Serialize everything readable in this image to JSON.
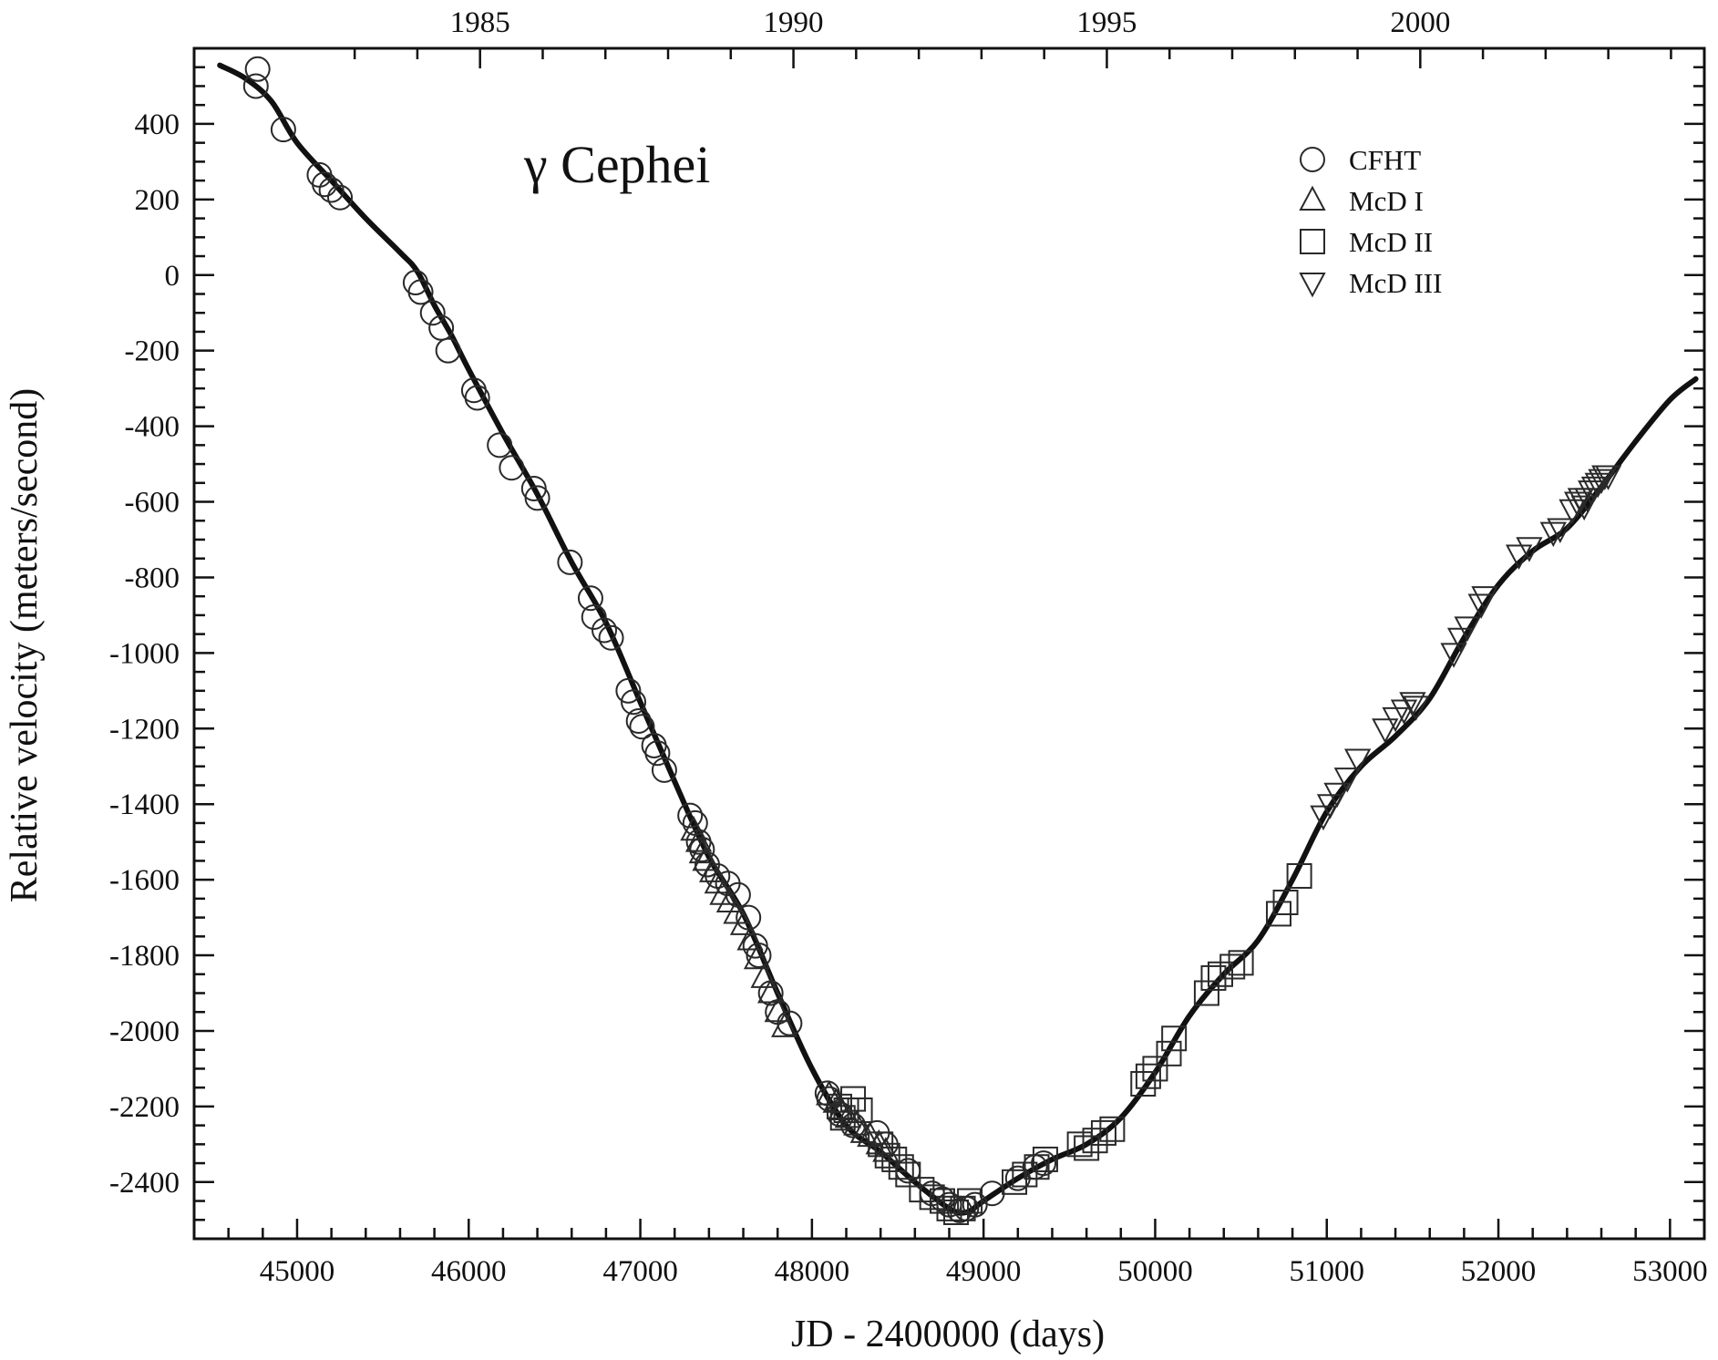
{
  "chart_data": {
    "type": "scatter",
    "title": "γ Cephei",
    "xlabel": "JD - 2400000 (days)",
    "ylabel": "Relative velocity (meters/second)",
    "xlim": [
      44400,
      53200
    ],
    "ylim": [
      -2550,
      600
    ],
    "xticks": [
      45000,
      46000,
      47000,
      48000,
      49000,
      50000,
      51000,
      52000,
      53000
    ],
    "yticks": [
      400,
      200,
      0,
      -200,
      -400,
      -600,
      -800,
      -1000,
      -1200,
      -1400,
      -1600,
      -1800,
      -2000,
      -2200,
      -2400
    ],
    "top_axis_ticks": [
      {
        "label": "1985",
        "jd": 46066
      },
      {
        "label": "1990",
        "jd": 47892
      },
      {
        "label": "1995",
        "jd": 49718
      },
      {
        "label": "2000",
        "jd": 51545
      }
    ],
    "legend_position": "top-right",
    "grid": false,
    "legend": [
      {
        "label": "CFHT",
        "marker": "circle"
      },
      {
        "label": "McD I",
        "marker": "triangle-up"
      },
      {
        "label": "McD II",
        "marker": "square"
      },
      {
        "label": "McD III",
        "marker": "triangle-down"
      }
    ],
    "series": [
      {
        "name": "CFHT",
        "marker": "circle",
        "points": [
          [
            44770,
            545
          ],
          [
            44760,
            500
          ],
          [
            44920,
            385
          ],
          [
            45130,
            265
          ],
          [
            45160,
            240
          ],
          [
            45200,
            225
          ],
          [
            45250,
            205
          ],
          [
            45690,
            -20
          ],
          [
            45720,
            -45
          ],
          [
            45790,
            -100
          ],
          [
            45840,
            -140
          ],
          [
            45880,
            -200
          ],
          [
            46030,
            -305
          ],
          [
            46050,
            -325
          ],
          [
            46180,
            -450
          ],
          [
            46250,
            -510
          ],
          [
            46380,
            -565
          ],
          [
            46400,
            -590
          ],
          [
            46590,
            -760
          ],
          [
            46710,
            -855
          ],
          [
            46730,
            -905
          ],
          [
            46790,
            -940
          ],
          [
            46830,
            -960
          ],
          [
            46930,
            -1100
          ],
          [
            46960,
            -1130
          ],
          [
            46990,
            -1180
          ],
          [
            47010,
            -1195
          ],
          [
            47080,
            -1245
          ],
          [
            47100,
            -1265
          ],
          [
            47140,
            -1310
          ],
          [
            47290,
            -1430
          ],
          [
            47320,
            -1450
          ],
          [
            47340,
            -1500
          ],
          [
            47360,
            -1520
          ],
          [
            47390,
            -1560
          ],
          [
            47450,
            -1590
          ],
          [
            47510,
            -1610
          ],
          [
            47570,
            -1640
          ],
          [
            47630,
            -1700
          ],
          [
            47670,
            -1775
          ],
          [
            47690,
            -1800
          ],
          [
            47760,
            -1900
          ],
          [
            47800,
            -1950
          ],
          [
            47870,
            -1980
          ],
          [
            48090,
            -2165
          ],
          [
            48100,
            -2180
          ],
          [
            48160,
            -2220
          ],
          [
            48240,
            -2250
          ],
          [
            48380,
            -2270
          ],
          [
            48430,
            -2300
          ],
          [
            48560,
            -2370
          ],
          [
            48700,
            -2430
          ],
          [
            48760,
            -2445
          ],
          [
            48800,
            -2460
          ],
          [
            48860,
            -2475
          ],
          [
            48900,
            -2470
          ],
          [
            48950,
            -2460
          ],
          [
            49050,
            -2430
          ],
          [
            49200,
            -2390
          ],
          [
            49300,
            -2360
          ],
          [
            49350,
            -2350
          ]
        ]
      },
      {
        "name": "McD I",
        "marker": "triangle-up",
        "points": [
          [
            47310,
            -1470
          ],
          [
            47340,
            -1500
          ],
          [
            47360,
            -1530
          ],
          [
            47380,
            -1550
          ],
          [
            47420,
            -1580
          ],
          [
            47450,
            -1610
          ],
          [
            47480,
            -1640
          ],
          [
            47520,
            -1660
          ],
          [
            47560,
            -1690
          ],
          [
            47600,
            -1720
          ],
          [
            47640,
            -1760
          ],
          [
            47680,
            -1810
          ],
          [
            47720,
            -1860
          ],
          [
            47760,
            -1900
          ],
          [
            47800,
            -1950
          ],
          [
            47840,
            -1990
          ],
          [
            48100,
            -2170
          ],
          [
            48140,
            -2190
          ],
          [
            48170,
            -2210
          ],
          [
            48210,
            -2230
          ],
          [
            48260,
            -2250
          ],
          [
            48300,
            -2270
          ],
          [
            48340,
            -2280
          ],
          [
            48390,
            -2300
          ],
          [
            48430,
            -2320
          ]
        ]
      },
      {
        "name": "McD II",
        "marker": "square",
        "points": [
          [
            48160,
            -2200
          ],
          [
            48180,
            -2230
          ],
          [
            48200,
            -2210
          ],
          [
            48240,
            -2180
          ],
          [
            48280,
            -2210
          ],
          [
            48400,
            -2300
          ],
          [
            48440,
            -2330
          ],
          [
            48480,
            -2340
          ],
          [
            48520,
            -2360
          ],
          [
            48560,
            -2380
          ],
          [
            48640,
            -2420
          ],
          [
            48700,
            -2440
          ],
          [
            48760,
            -2450
          ],
          [
            48800,
            -2470
          ],
          [
            48840,
            -2480
          ],
          [
            48880,
            -2470
          ],
          [
            48920,
            -2450
          ],
          [
            49180,
            -2400
          ],
          [
            49240,
            -2380
          ],
          [
            49310,
            -2360
          ],
          [
            49360,
            -2340
          ],
          [
            49560,
            -2300
          ],
          [
            49600,
            -2310
          ],
          [
            49650,
            -2290
          ],
          [
            49700,
            -2270
          ],
          [
            49750,
            -2260
          ],
          [
            49930,
            -2140
          ],
          [
            49960,
            -2120
          ],
          [
            50000,
            -2100
          ],
          [
            50080,
            -2060
          ],
          [
            50110,
            -2020
          ],
          [
            50300,
            -1900
          ],
          [
            50340,
            -1860
          ],
          [
            50380,
            -1850
          ],
          [
            50450,
            -1830
          ],
          [
            50500,
            -1820
          ],
          [
            50720,
            -1690
          ],
          [
            50760,
            -1660
          ],
          [
            50840,
            -1590
          ]
        ]
      },
      {
        "name": "McD III",
        "marker": "triangle-down",
        "points": [
          [
            50980,
            -1430
          ],
          [
            51020,
            -1400
          ],
          [
            51060,
            -1370
          ],
          [
            51120,
            -1330
          ],
          [
            51180,
            -1280
          ],
          [
            51340,
            -1200
          ],
          [
            51400,
            -1170
          ],
          [
            51450,
            -1150
          ],
          [
            51500,
            -1130
          ],
          [
            51520,
            -1140
          ],
          [
            51740,
            -1000
          ],
          [
            51780,
            -960
          ],
          [
            51820,
            -930
          ],
          [
            51900,
            -870
          ],
          [
            51920,
            -850
          ],
          [
            52120,
            -740
          ],
          [
            52180,
            -720
          ],
          [
            52320,
            -680
          ],
          [
            52360,
            -670
          ],
          [
            52430,
            -620
          ],
          [
            52460,
            -600
          ],
          [
            52480,
            -590
          ],
          [
            52500,
            -610
          ],
          [
            52520,
            -590
          ],
          [
            52540,
            -570
          ],
          [
            52560,
            -560
          ],
          [
            52580,
            -550
          ],
          [
            52600,
            -540
          ],
          [
            52620,
            -530
          ],
          [
            52640,
            -530
          ]
        ]
      }
    ],
    "fit_curve": {
      "name": "",
      "points": [
        [
          44550,
          555
        ],
        [
          44700,
          520
        ],
        [
          44850,
          460
        ],
        [
          45000,
          350
        ],
        [
          45200,
          250
        ],
        [
          45400,
          150
        ],
        [
          45600,
          60
        ],
        [
          45700,
          10
        ],
        [
          45800,
          -80
        ],
        [
          45900,
          -160
        ],
        [
          46000,
          -250
        ],
        [
          46200,
          -420
        ],
        [
          46400,
          -580
        ],
        [
          46600,
          -760
        ],
        [
          46800,
          -920
        ],
        [
          47000,
          -1130
        ],
        [
          47200,
          -1340
        ],
        [
          47400,
          -1540
        ],
        [
          47600,
          -1690
        ],
        [
          47800,
          -1900
        ],
        [
          48000,
          -2100
        ],
        [
          48200,
          -2250
        ],
        [
          48400,
          -2320
        ],
        [
          48600,
          -2400
        ],
        [
          48800,
          -2470
        ],
        [
          48900,
          -2480
        ],
        [
          49000,
          -2450
        ],
        [
          49200,
          -2390
        ],
        [
          49400,
          -2340
        ],
        [
          49600,
          -2300
        ],
        [
          49800,
          -2230
        ],
        [
          50000,
          -2110
        ],
        [
          50200,
          -1960
        ],
        [
          50400,
          -1850
        ],
        [
          50600,
          -1760
        ],
        [
          50800,
          -1600
        ],
        [
          51000,
          -1420
        ],
        [
          51200,
          -1300
        ],
        [
          51400,
          -1220
        ],
        [
          51600,
          -1120
        ],
        [
          51800,
          -960
        ],
        [
          52000,
          -820
        ],
        [
          52200,
          -730
        ],
        [
          52400,
          -670
        ],
        [
          52600,
          -560
        ],
        [
          52800,
          -440
        ],
        [
          53000,
          -330
        ],
        [
          53150,
          -275
        ]
      ]
    }
  }
}
